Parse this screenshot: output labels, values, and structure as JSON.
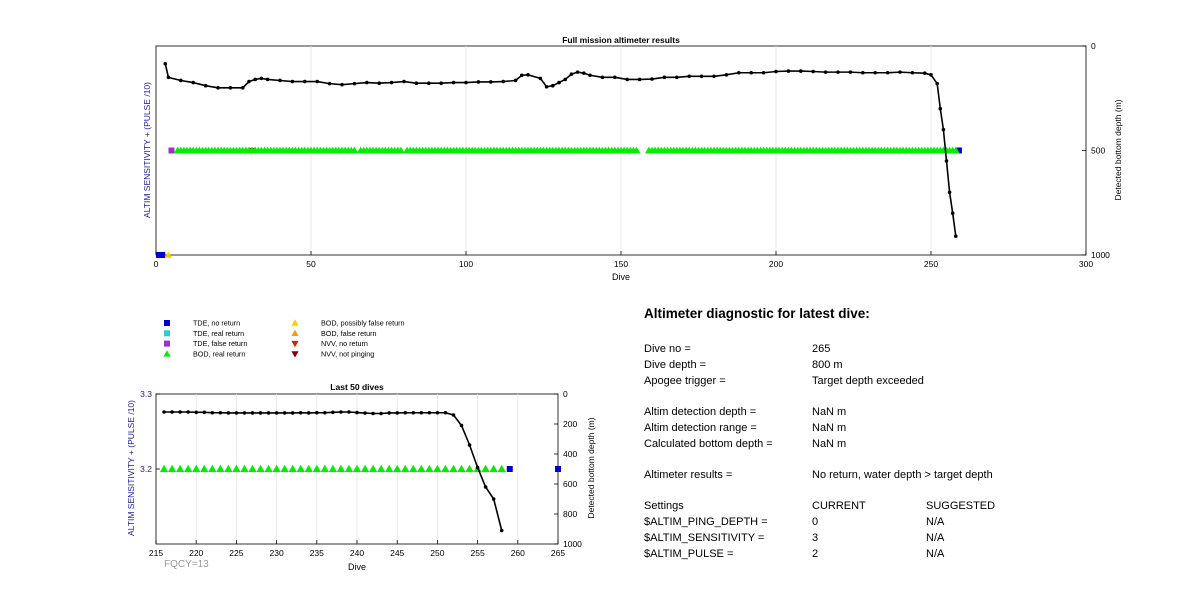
{
  "colors": {
    "tde_no_return": "#0000cc",
    "tde_real_return": "#33cccc",
    "tde_false_return": "#9933cc",
    "bod_real_return": "#00ee00",
    "bod_possibly_false": "#ffcc00",
    "bod_false": "#ff9900",
    "nvv_no_return": "#dd2200",
    "nvv_not_pinging": "#880000",
    "depth_line": "#000000",
    "left_axis_label": "#1a1aa0"
  },
  "footer_note": "FQCY=13",
  "legend": [
    {
      "marker": "square",
      "color": "#0000cc",
      "label": "TDE, no return"
    },
    {
      "marker": "square",
      "color": "#33cccc",
      "label": "TDE, real return"
    },
    {
      "marker": "square",
      "color": "#9933cc",
      "label": "TDE, false return"
    },
    {
      "marker": "triangle-up",
      "color": "#00ee00",
      "label": "BOD, real return"
    },
    {
      "marker": "triangle-up",
      "color": "#ffcc00",
      "label": "BOD, possibly false return"
    },
    {
      "marker": "triangle-up",
      "color": "#ff9900",
      "label": "BOD, false return"
    },
    {
      "marker": "triangle-down",
      "color": "#dd2200",
      "label": "NVV, no return"
    },
    {
      "marker": "triangle-down",
      "color": "#880000",
      "label": "NVV, not pinging"
    }
  ],
  "chart_data": [
    {
      "type": "line",
      "title": "Full mission altimeter results",
      "xlabel": "Dive",
      "ylabel_left": "ALTIM SENSITIVITY + (PULSE /10)",
      "ylabel_right": "Detected bottom depth (m)",
      "xlim": [
        0,
        300
      ],
      "x_ticks": [
        0,
        50,
        100,
        150,
        200,
        250,
        300
      ],
      "ylim_right": [
        0,
        1000
      ],
      "y_right_ticks": [
        0,
        500,
        1000
      ],
      "y_right_reversed": true,
      "grid": "vertical",
      "depth_series": {
        "name": "Detected bottom depth",
        "x": [
          3,
          4,
          8,
          12,
          16,
          20,
          24,
          28,
          30,
          32,
          34,
          36,
          40,
          44,
          48,
          52,
          56,
          60,
          64,
          68,
          72,
          76,
          80,
          84,
          88,
          92,
          96,
          100,
          104,
          108,
          112,
          116,
          118,
          120,
          124,
          126,
          128,
          130,
          132,
          134,
          136,
          138,
          140,
          144,
          148,
          152,
          156,
          160,
          164,
          168,
          172,
          176,
          180,
          184,
          188,
          192,
          196,
          200,
          204,
          208,
          212,
          216,
          220,
          224,
          228,
          232,
          236,
          240,
          244,
          248,
          250,
          252,
          253,
          254,
          255,
          256,
          257,
          258
        ],
        "y": [
          85,
          150,
          165,
          175,
          190,
          200,
          200,
          200,
          170,
          160,
          155,
          160,
          165,
          170,
          170,
          170,
          180,
          185,
          180,
          175,
          178,
          175,
          170,
          178,
          178,
          178,
          175,
          175,
          172,
          172,
          170,
          165,
          140,
          138,
          155,
          195,
          190,
          175,
          160,
          135,
          125,
          130,
          140,
          150,
          150,
          160,
          160,
          158,
          150,
          150,
          145,
          145,
          145,
          138,
          128,
          128,
          128,
          122,
          120,
          120,
          122,
          125,
          125,
          125,
          128,
          128,
          128,
          125,
          128,
          130,
          138,
          180,
          300,
          400,
          550,
          700,
          800,
          910
        ]
      },
      "altim_series": [
        {
          "name": "TDE, no return",
          "marker": "square",
          "color": "#0000cc",
          "x": [
            1,
            2,
            259
          ],
          "y": [
            1000,
            1000,
            500
          ]
        },
        {
          "name": "TDE, false return",
          "marker": "square",
          "color": "#9933cc",
          "x": [
            5
          ],
          "y": [
            500
          ]
        },
        {
          "name": "BOD, possibly false return",
          "marker": "triangle-up",
          "color": "#ffcc00",
          "x": [
            4
          ],
          "y": [
            1000
          ]
        },
        {
          "name": "NVV, no return",
          "marker": "triangle-down",
          "color": "#dd2200",
          "x": [
            31
          ],
          "y": [
            500
          ]
        },
        {
          "name": "BOD, real return",
          "marker": "triangle-up",
          "color": "#00ee00",
          "x_range": [
            7,
            258
          ],
          "exclude": [
            65,
            80,
            156,
            157,
            158
          ],
          "y": 500
        }
      ]
    },
    {
      "type": "line",
      "title": "Last 50 dives",
      "xlabel": "Dive",
      "ylabel_left": "ALTIM SENSITIVITY + (PULSE /10)",
      "ylabel_right": "Detected bottom depth (m)",
      "xlim": [
        215,
        265
      ],
      "x_ticks": [
        215,
        220,
        225,
        230,
        235,
        240,
        245,
        250,
        255,
        260,
        265
      ],
      "ylim_left": [
        3.1,
        3.3
      ],
      "y_left_ticks": [
        3.2,
        3.3
      ],
      "ylim_right": [
        0,
        1000
      ],
      "y_right_ticks": [
        0,
        200,
        400,
        600,
        800,
        1000
      ],
      "y_right_reversed": true,
      "grid": "vertical",
      "depth_series": {
        "name": "Detected bottom depth",
        "x": [
          216,
          217,
          218,
          219,
          220,
          221,
          222,
          223,
          224,
          225,
          226,
          227,
          228,
          229,
          230,
          231,
          232,
          233,
          234,
          235,
          236,
          237,
          238,
          239,
          240,
          241,
          242,
          243,
          244,
          245,
          246,
          247,
          248,
          249,
          250,
          251,
          252,
          253,
          254,
          255,
          256,
          257,
          258
        ],
        "y": [
          120,
          120,
          120,
          120,
          122,
          122,
          125,
          125,
          126,
          126,
          126,
          126,
          126,
          126,
          126,
          126,
          126,
          125,
          126,
          125,
          125,
          122,
          120,
          120,
          124,
          127,
          130,
          130,
          126,
          126,
          125,
          125,
          125,
          125,
          125,
          125,
          140,
          210,
          340,
          490,
          620,
          700,
          910
        ]
      },
      "altim_series": [
        {
          "name": "BOD, real return",
          "marker": "triangle-up",
          "color": "#00ee00",
          "x_range": [
            216,
            258
          ],
          "y": 3.2
        },
        {
          "name": "TDE, no return",
          "marker": "square",
          "color": "#0000cc",
          "x": [
            259,
            265
          ],
          "y": [
            3.2,
            3.2
          ]
        }
      ]
    }
  ],
  "diagnostic": {
    "title": "Altimeter diagnostic for latest dive:",
    "dive_no_label": "Dive no =",
    "dive_no": "265",
    "dive_depth_label": "Dive depth =",
    "dive_depth": "800 m",
    "apogee_label": "Apogee trigger =",
    "apogee": "Target depth exceeded",
    "detect_depth_label": "Altim detection depth =",
    "detect_depth": "NaN m",
    "detect_range_label": "Altim detection range =",
    "detect_range": "NaN m",
    "calc_depth_label": "Calculated bottom depth =",
    "calc_depth": "NaN m",
    "results_label": "Altimeter results =",
    "results": "No return, water depth > target depth",
    "settings_label": "Settings",
    "current_label": "CURRENT",
    "suggested_label": "SUGGESTED",
    "settings": [
      {
        "name": "$ALTIM_PING_DEPTH =",
        "current": "0",
        "suggested": "N/A"
      },
      {
        "name": "$ALTIM_SENSITIVITY =",
        "current": "3",
        "suggested": "N/A"
      },
      {
        "name": "$ALTIM_PULSE =",
        "current": "2",
        "suggested": "N/A"
      }
    ]
  }
}
